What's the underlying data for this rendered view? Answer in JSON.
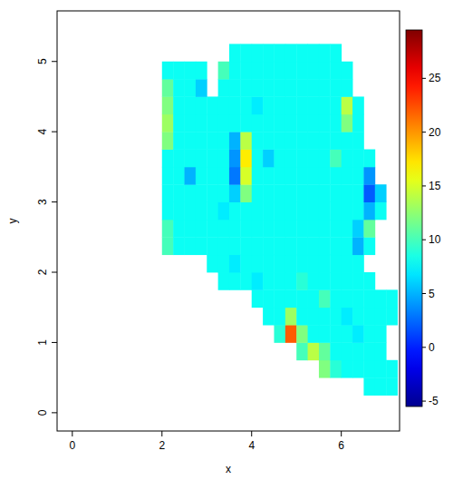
{
  "chart_data": {
    "type": "heatmap",
    "x_label": "x",
    "y_label": "y",
    "xlim": [
      -0.34,
      7.3
    ],
    "ylim": [
      -0.26,
      5.72
    ],
    "xticks": [
      0,
      2,
      4,
      6
    ],
    "yticks": [
      0,
      1,
      2,
      3,
      4,
      5
    ],
    "x_bins": [
      2.0,
      2.25,
      2.5,
      2.75,
      3.0,
      3.25,
      3.5,
      3.75,
      4.0,
      4.25,
      4.5,
      4.75,
      5.0,
      5.25,
      5.5,
      5.75,
      6.0,
      6.25,
      6.5,
      6.75,
      7.0,
      7.25
    ],
    "y_bins": [
      0.25,
      0.5,
      0.75,
      1.0,
      1.25,
      1.5,
      1.75,
      2.0,
      2.25,
      2.5,
      2.75,
      3.0,
      3.25,
      3.5,
      3.75,
      4.0,
      4.25,
      4.5,
      4.75,
      5.0,
      5.25
    ],
    "values": [
      [
        null,
        null,
        null,
        null,
        null,
        null,
        null,
        null,
        null,
        null,
        null,
        null,
        null,
        null,
        null,
        null,
        null,
        null,
        8,
        8,
        8
      ],
      [
        null,
        null,
        null,
        null,
        null,
        null,
        null,
        null,
        null,
        null,
        null,
        null,
        null,
        null,
        12,
        9,
        8,
        8,
        8,
        8,
        8
      ],
      [
        null,
        null,
        null,
        null,
        null,
        null,
        null,
        null,
        null,
        null,
        null,
        null,
        10,
        14,
        11,
        8,
        8,
        8,
        8,
        8,
        null
      ],
      [
        null,
        null,
        null,
        null,
        null,
        null,
        null,
        null,
        null,
        null,
        9,
        22,
        12,
        8,
        8,
        8,
        8,
        7,
        8,
        8,
        null
      ],
      [
        null,
        null,
        null,
        null,
        null,
        null,
        null,
        null,
        null,
        8,
        8,
        13,
        8,
        8,
        8,
        8,
        7,
        8,
        8,
        8,
        8
      ],
      [
        null,
        null,
        null,
        null,
        null,
        null,
        null,
        null,
        8,
        8,
        8,
        8,
        8,
        8,
        10,
        8,
        8,
        8,
        8,
        8,
        8
      ],
      [
        null,
        null,
        null,
        null,
        null,
        8,
        8,
        8,
        7,
        8,
        8,
        8,
        9,
        8,
        8,
        8,
        8,
        8,
        8,
        null,
        null
      ],
      [
        null,
        null,
        null,
        null,
        8,
        8,
        7,
        8,
        8,
        8,
        8,
        8,
        8,
        8,
        8,
        8,
        8,
        8,
        null,
        null,
        null
      ],
      [
        10,
        8,
        8,
        8,
        8,
        8,
        8,
        8,
        8,
        8,
        8,
        8,
        8,
        8,
        8,
        8,
        8,
        5,
        8,
        null,
        null
      ],
      [
        10,
        8,
        8,
        8,
        8,
        8,
        8,
        8,
        8,
        8,
        8,
        8,
        8,
        8,
        8,
        8,
        8,
        6,
        11,
        null,
        null
      ],
      [
        8,
        8,
        8,
        8,
        8,
        7,
        8,
        8,
        8,
        8,
        8,
        8,
        8,
        8,
        8,
        8,
        8,
        8,
        5,
        8,
        null
      ],
      [
        8,
        8,
        8,
        8,
        8,
        8,
        6,
        12,
        8,
        8,
        8,
        8,
        8,
        8,
        8,
        8,
        8,
        8,
        2,
        6,
        null
      ],
      [
        8,
        8,
        5,
        8,
        8,
        8,
        3,
        15,
        8,
        8,
        8,
        8,
        8,
        8,
        8,
        8,
        8,
        8,
        4,
        null,
        null
      ],
      [
        8,
        8,
        8,
        8,
        8,
        8,
        4,
        17,
        8,
        6,
        8,
        8,
        8,
        8,
        8,
        10,
        8,
        8,
        8,
        null,
        null
      ],
      [
        12,
        8,
        8,
        8,
        8,
        8,
        5,
        14,
        8,
        8,
        8,
        8,
        8,
        8,
        8,
        8,
        8,
        8,
        null,
        null,
        null
      ],
      [
        13,
        8,
        8,
        8,
        8,
        8,
        8,
        8,
        8,
        8,
        8,
        8,
        8,
        8,
        8,
        8,
        12,
        8,
        null,
        null,
        null
      ],
      [
        12,
        8,
        8,
        8,
        8,
        8,
        8,
        8,
        7,
        8,
        8,
        8,
        8,
        8,
        8,
        8,
        14,
        8,
        null,
        null,
        null
      ],
      [
        11,
        8,
        8,
        6,
        null,
        8,
        8,
        8,
        8,
        8,
        8,
        8,
        8,
        8,
        8,
        8,
        8,
        null,
        null,
        null,
        null
      ],
      [
        8,
        8,
        8,
        8,
        null,
        10,
        8,
        8,
        8,
        8,
        8,
        8,
        8,
        8,
        8,
        8,
        8,
        null,
        null,
        null,
        null
      ],
      [
        null,
        null,
        null,
        null,
        null,
        null,
        8,
        8,
        8,
        8,
        8,
        8,
        8,
        8,
        8,
        8,
        null,
        null,
        null,
        null,
        null
      ]
    ],
    "colorbar": {
      "zlim": [
        -5.5,
        29.5
      ],
      "ticks": [
        -5,
        0,
        5,
        10,
        15,
        20,
        25
      ]
    }
  }
}
